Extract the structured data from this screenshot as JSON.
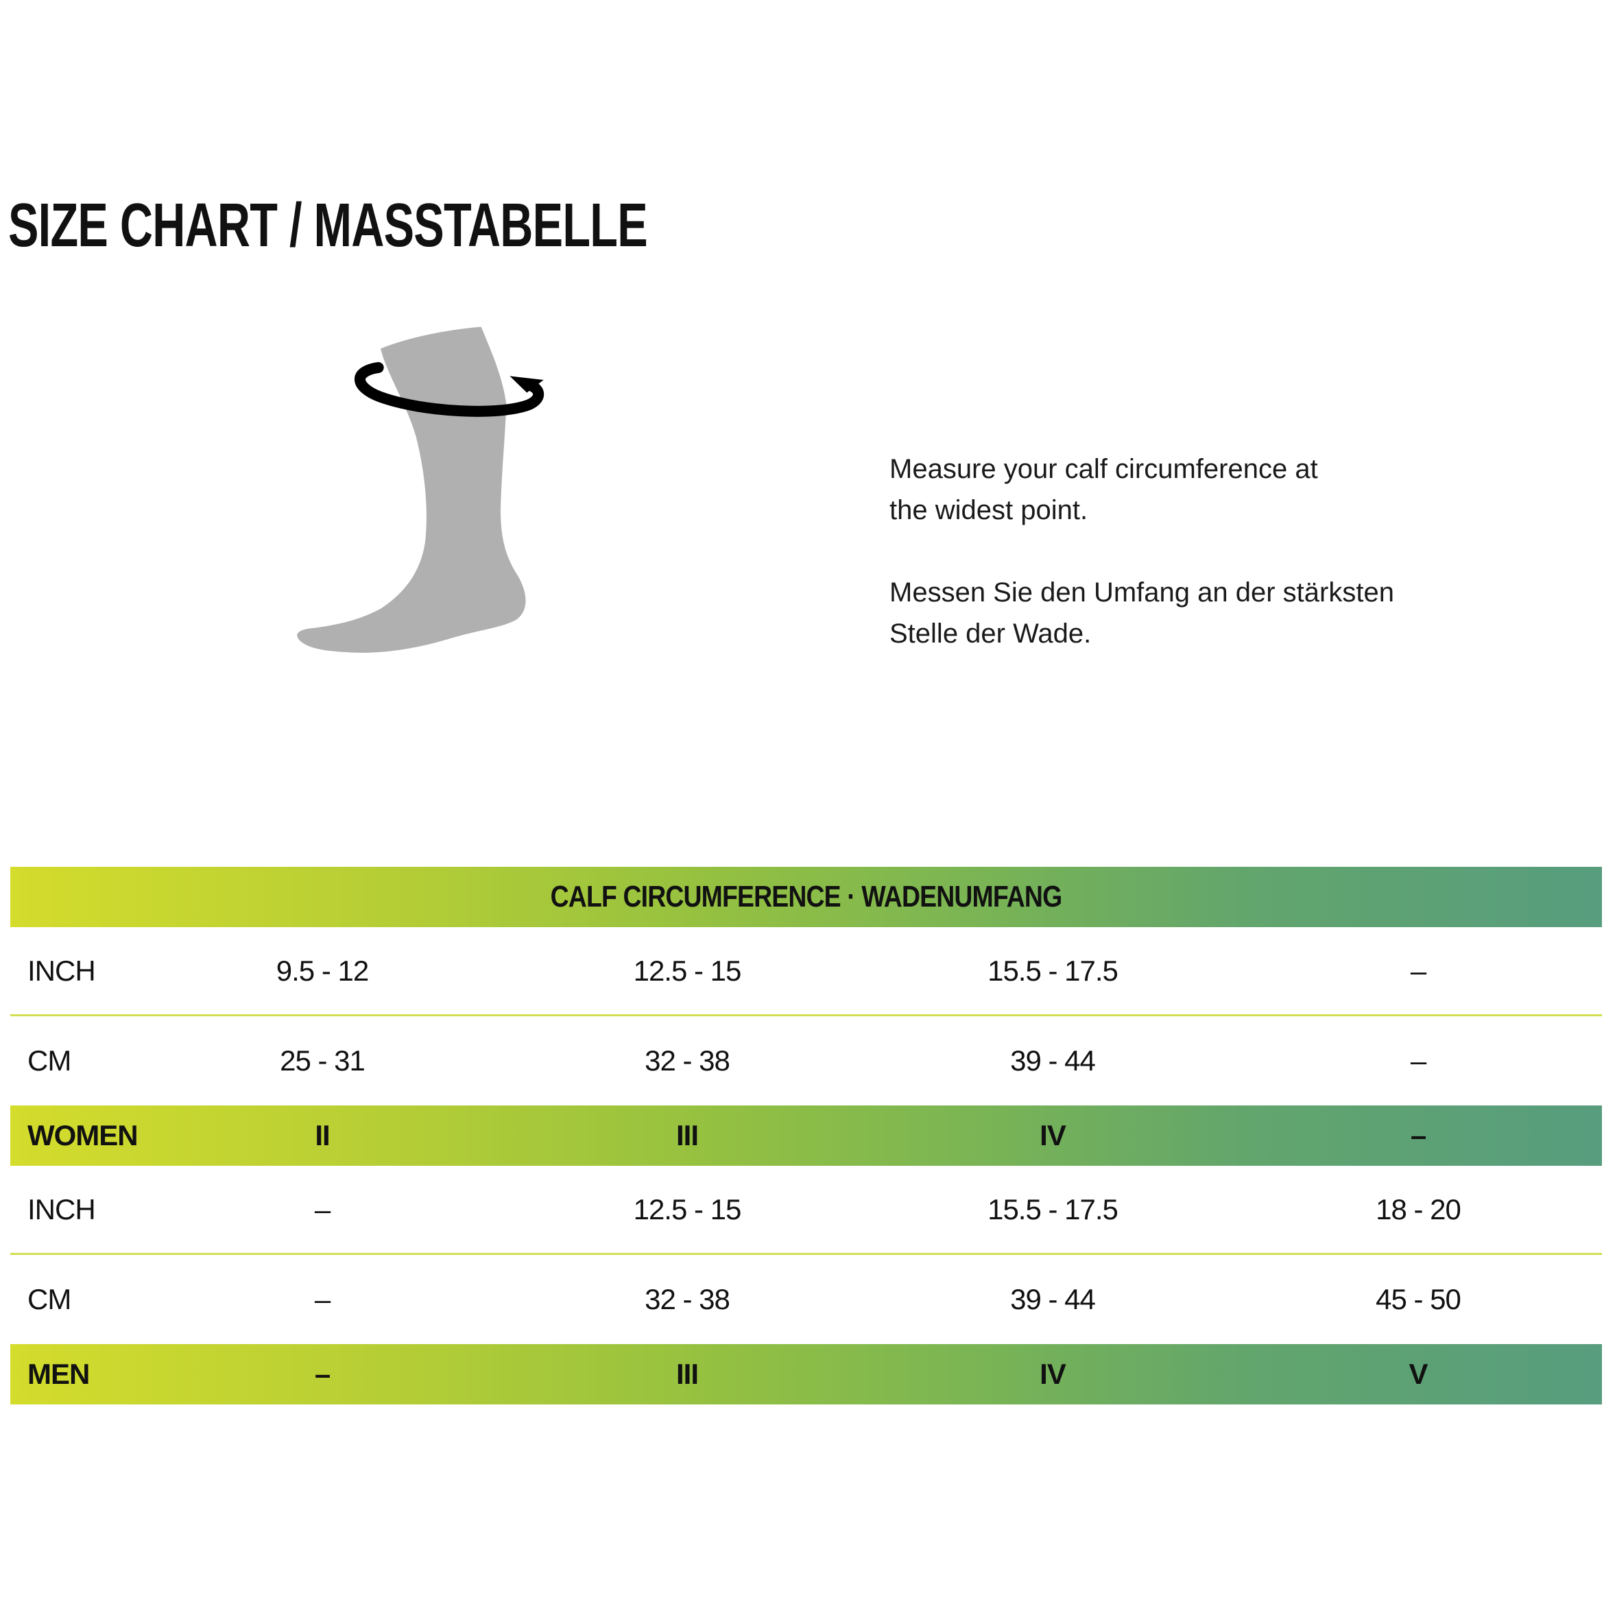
{
  "title": "SIZE CHART / MASSTABELLE",
  "illustration": {
    "icon": "sock-with-circumference-arrow-icon",
    "sock_color": "#b0b0b0",
    "arrow_color": "#000000"
  },
  "instructions": {
    "en": [
      "Measure your calf circumference at",
      "the widest point."
    ],
    "de": [
      "Messen Sie den Umfang an der stärksten",
      "Stelle der Wade."
    ]
  },
  "table": {
    "header": "CALF CIRCUMFERENCE · WADENUMFANG",
    "gradient_colors": [
      "#d4dc2c",
      "#579d7e"
    ],
    "divider_color": "#d3dd52",
    "women": {
      "rows": [
        {
          "label": "INCH",
          "values": [
            "9.5 - 12",
            "12.5 - 15",
            "15.5 - 17.5",
            "–"
          ]
        },
        {
          "label": "CM",
          "values": [
            "25 - 31",
            "32 - 38",
            "39 - 44",
            "–"
          ]
        }
      ],
      "sizes": {
        "label": "WOMEN",
        "values": [
          "II",
          "III",
          "IV",
          "–"
        ]
      }
    },
    "men": {
      "rows": [
        {
          "label": "INCH",
          "values": [
            "–",
            "12.5 - 15",
            "15.5 - 17.5",
            "18 - 20"
          ]
        },
        {
          "label": "CM",
          "values": [
            "–",
            "32 - 38",
            "39 - 44",
            "45 - 50"
          ]
        }
      ],
      "sizes": {
        "label": "MEN",
        "values": [
          "–",
          "III",
          "IV",
          "V"
        ]
      }
    }
  }
}
